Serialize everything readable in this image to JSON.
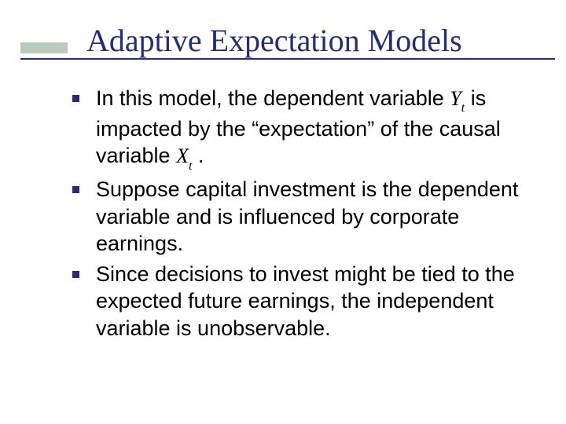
{
  "title": "Adaptive Expectation Models",
  "bullets": [
    {
      "pre": "In this model, the dependent variable ",
      "var1": "Y",
      "sub1": "t",
      "mid": " is impacted by the “expectation” of the causal variable ",
      "var2": "X",
      "sub2": "t",
      "post": " ."
    },
    {
      "pre": "Suppose capital investment is the dependent variable and is influenced by corporate earnings.",
      "var1": "",
      "sub1": "",
      "mid": "",
      "var2": "",
      "sub2": "",
      "post": ""
    },
    {
      "pre": "Since decisions to invest might be tied to the expected future earnings, the independent variable is unobservable.",
      "var1": "",
      "sub1": "",
      "mid": "",
      "var2": "",
      "sub2": "",
      "post": ""
    }
  ],
  "style": {
    "title_color": "#252d77",
    "title_fontsize": 40,
    "title_font": "Times New Roman",
    "body_fontsize": 27,
    "body_font": "Tahoma",
    "body_color": "#000000",
    "bullet_color": "#252d77",
    "bullet_size": 9,
    "accent_bar_color": "#bccabb",
    "underline_color": "#252d77",
    "background": "#ffffff",
    "slide_width": 720,
    "slide_height": 540
  }
}
